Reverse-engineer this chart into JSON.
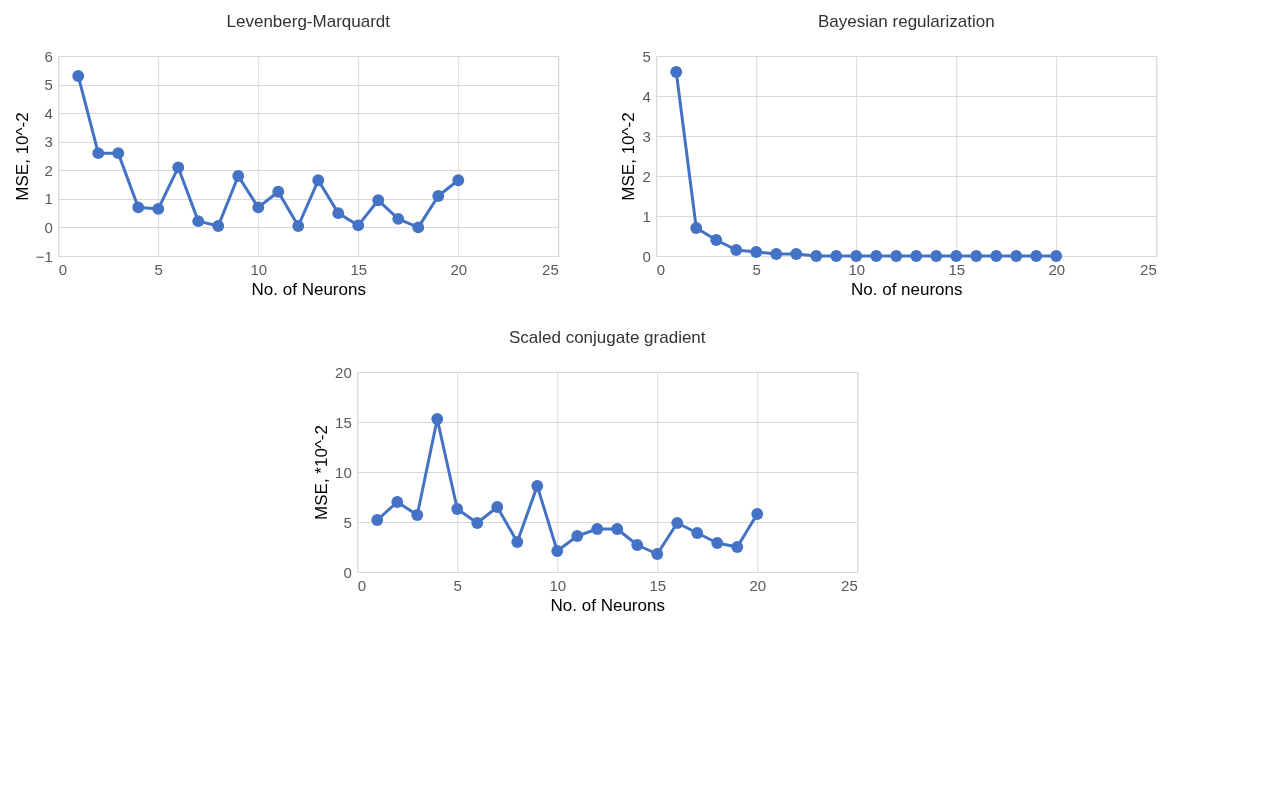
{
  "chart_data": [
    {
      "type": "line",
      "title": "Levenberg-Marquardt",
      "xlabel": "No. of Neurons",
      "ylabel": "MSE, 10^-2",
      "x": [
        1,
        2,
        3,
        4,
        5,
        6,
        7,
        8,
        9,
        10,
        11,
        12,
        13,
        14,
        15,
        16,
        17,
        18,
        19,
        20
      ],
      "series": [
        {
          "color": "#4472c4",
          "values": [
            5.3,
            2.6,
            2.6,
            0.7,
            0.65,
            2.1,
            0.22,
            0.05,
            1.8,
            0.7,
            1.25,
            0.05,
            1.65,
            0.5,
            0.07,
            0.95,
            0.3,
            0.0,
            1.1,
            1.65
          ]
        }
      ],
      "xlim": [
        0,
        25
      ],
      "xticks": [
        0,
        5,
        10,
        15,
        20,
        25
      ],
      "ylim": [
        -1,
        6
      ],
      "yticks": [
        -1,
        0,
        1,
        2,
        3,
        4,
        5,
        6
      ],
      "grid": true,
      "marker": "circle",
      "line_style": "solid"
    },
    {
      "type": "line",
      "title": "Bayesian regularization",
      "xlabel": "No. of neurons",
      "ylabel": "MSE, 10^-2",
      "x": [
        1,
        2,
        3,
        4,
        5,
        6,
        7,
        8,
        9,
        10,
        11,
        12,
        13,
        14,
        15,
        16,
        17,
        18,
        19,
        20
      ],
      "series": [
        {
          "color": "#4472c4",
          "values": [
            4.6,
            0.7,
            0.4,
            0.15,
            0.1,
            0.05,
            0.05,
            0.0,
            0.0,
            0.0,
            0.0,
            0.0,
            0.0,
            0.0,
            0.0,
            0.0,
            0.0,
            0.0,
            0.0,
            0.0
          ]
        }
      ],
      "xlim": [
        0,
        25
      ],
      "xticks": [
        0,
        5,
        10,
        15,
        20,
        25
      ],
      "ylim": [
        0,
        5
      ],
      "yticks": [
        0,
        1,
        2,
        3,
        4,
        5
      ],
      "grid": true,
      "marker": "circle",
      "line_style": "solid"
    },
    {
      "type": "line",
      "title": "Scaled conjugate gradient",
      "xlabel": "No. of Neurons",
      "ylabel": "MSE, *10^-2",
      "x": [
        1,
        2,
        3,
        4,
        5,
        6,
        7,
        8,
        9,
        10,
        11,
        12,
        13,
        14,
        15,
        16,
        17,
        18,
        19,
        20
      ],
      "series": [
        {
          "color": "#4472c4",
          "values": [
            5.2,
            7.0,
            5.7,
            15.3,
            6.3,
            4.9,
            6.5,
            3.0,
            8.6,
            2.1,
            3.6,
            4.3,
            4.3,
            2.7,
            1.8,
            4.9,
            3.9,
            2.9,
            2.5,
            5.8
          ]
        }
      ],
      "xlim": [
        0,
        25
      ],
      "xticks": [
        0,
        5,
        10,
        15,
        20,
        25
      ],
      "ylim": [
        0,
        20
      ],
      "yticks": [
        0,
        5,
        10,
        15,
        20
      ],
      "grid": true,
      "marker": "circle",
      "line_style": "solid"
    }
  ]
}
